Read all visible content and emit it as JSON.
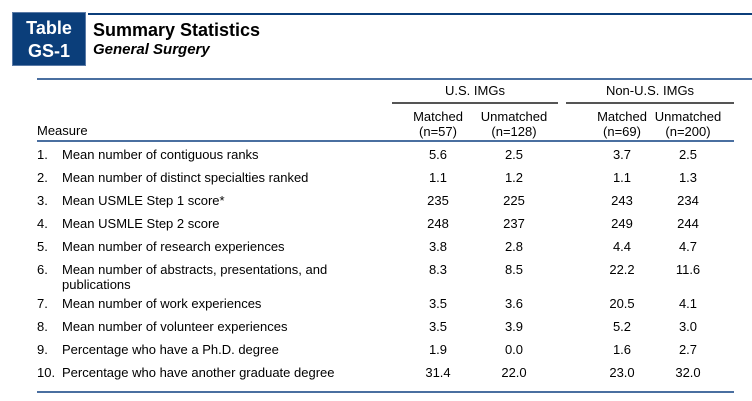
{
  "table": {
    "badge_line1": "Table",
    "badge_line2": "GS-1",
    "title": "Summary Statistics",
    "subtitle": "General Surgery",
    "groups": [
      "U.S. IMGs",
      "Non-U.S. IMGs"
    ],
    "columns": [
      {
        "label": "Matched",
        "n": "(n=57)"
      },
      {
        "label": "Unmatched",
        "n": "(n=128)"
      },
      {
        "label": "Matched",
        "n": "(n=69)"
      },
      {
        "label": "Unmatched",
        "n": "(n=200)"
      }
    ],
    "measure_header": "Measure",
    "rows": [
      {
        "num": "1.",
        "label": "Mean number of contiguous ranks",
        "values": [
          "5.6",
          "2.5",
          "3.7",
          "2.5"
        ]
      },
      {
        "num": "2.",
        "label": "Mean number of distinct specialties ranked",
        "values": [
          "1.1",
          "1.2",
          "1.1",
          "1.3"
        ]
      },
      {
        "num": "3.",
        "label": "Mean USMLE Step 1 score*",
        "values": [
          "235",
          "225",
          "243",
          "234"
        ]
      },
      {
        "num": "4.",
        "label": "Mean USMLE Step 2 score",
        "values": [
          "248",
          "237",
          "249",
          "244"
        ]
      },
      {
        "num": "5.",
        "label": "Mean number of research experiences",
        "values": [
          "3.8",
          "2.8",
          "4.4",
          "4.7"
        ]
      },
      {
        "num": "6.",
        "label": "Mean number of abstracts, presentations, and publications",
        "values": [
          "8.3",
          "8.5",
          "22.2",
          "11.6"
        ]
      },
      {
        "num": "7.",
        "label": "Mean number of work experiences",
        "values": [
          "3.5",
          "3.6",
          "20.5",
          "4.1"
        ]
      },
      {
        "num": "8.",
        "label": "Mean number of volunteer experiences",
        "values": [
          "3.5",
          "3.9",
          "5.2",
          "3.0"
        ]
      },
      {
        "num": "9.",
        "label": "Percentage who have a Ph.D. degree",
        "values": [
          "1.9",
          "0.0",
          "1.6",
          "2.7"
        ]
      },
      {
        "num": "10.",
        "label": "Percentage who have another graduate degree",
        "values": [
          "31.4",
          "22.0",
          "23.0",
          "32.0"
        ]
      }
    ]
  }
}
